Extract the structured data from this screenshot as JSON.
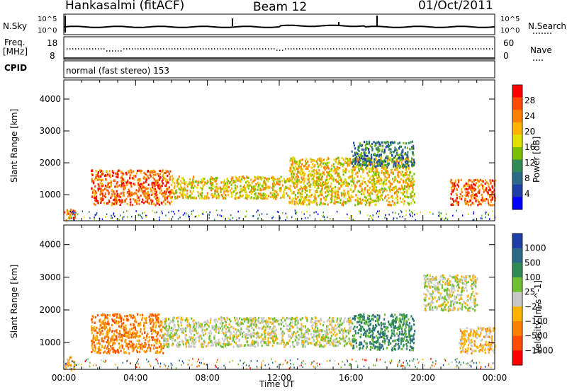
{
  "header": {
    "site": "Hankasalmi (fitACF)",
    "beam": "Beam 12",
    "date": "01/Oct/2011"
  },
  "strip_panels": {
    "nsky_label": "N.Sky",
    "nsearch_label": "N.Search",
    "nsky_ticks": [
      "10^5",
      "10^0"
    ],
    "nsearch_ticks": [
      "10^5",
      "10^0"
    ],
    "freq_label_line1": "Freq.",
    "freq_label_line2": "[MHz]",
    "freq_ticks": [
      "18",
      "8"
    ],
    "nave_label": "Nave",
    "nave_ticks": [
      "60",
      "0"
    ],
    "cpid_label": "CPID",
    "cpid_text": "normal (fast stereo) 153"
  },
  "chart_data": [
    {
      "type": "heatmap",
      "title": "",
      "xlabel": "",
      "ylabel": "Slant Range [km]",
      "ylim": [
        180,
        4600
      ],
      "xlim": [
        "00:00",
        "24:00"
      ],
      "yticks": [
        "1000",
        "2000",
        "3000",
        "4000"
      ],
      "colorbar_label": "Power [dB]",
      "colorbar_ticks": [
        "28",
        "24",
        "20",
        "16",
        "12",
        "8",
        "4"
      ],
      "colorbar_colors": [
        "#ff0000",
        "#ff4a00",
        "#ff7f00",
        "#ffb300",
        "#e0e000",
        "#7ac000",
        "#2e8b57",
        "#2d6a8a",
        "#1f3fa8",
        "#0000ff"
      ],
      "echo_regions": [
        {
          "t_start": 0.0,
          "t_end": 0.6,
          "r_min": 180,
          "r_max": 600,
          "level": "high"
        },
        {
          "t_start": 1.5,
          "t_end": 6.0,
          "r_min": 700,
          "r_max": 1800,
          "level": "high"
        },
        {
          "t_start": 6.0,
          "t_end": 12.5,
          "r_min": 900,
          "r_max": 1600,
          "level": "medium"
        },
        {
          "t_start": 12.5,
          "t_end": 19.5,
          "r_min": 700,
          "r_max": 2200,
          "level": "medium"
        },
        {
          "t_start": 16.0,
          "t_end": 19.5,
          "r_min": 1900,
          "r_max": 2700,
          "level": "low"
        },
        {
          "t_start": 21.5,
          "t_end": 24.0,
          "r_min": 700,
          "r_max": 1500,
          "level": "high"
        }
      ]
    },
    {
      "type": "heatmap",
      "title": "",
      "xlabel": "Time UT",
      "ylabel": "Slant Range [km]",
      "ylim": [
        180,
        4600
      ],
      "xlim": [
        "00:00",
        "24:00"
      ],
      "xticks": [
        "00:00",
        "04:00",
        "08:00",
        "12:00",
        "16:00",
        "20:00",
        "00:00"
      ],
      "yticks": [
        "1000",
        "2000",
        "3000",
        "4000"
      ],
      "colorbar_label": "Velocity [m s^-1]",
      "colorbar_ticks": [
        "1000",
        "500",
        "100",
        "25",
        "−25",
        "−100",
        "−500",
        "−1000"
      ],
      "colorbar_colors": [
        "#1f3fa8",
        "#2d6a8a",
        "#2e8b57",
        "#6fc030",
        "#c8c8c8",
        "#ffb300",
        "#ff7f00",
        "#ff4a00",
        "#ff0000"
      ],
      "echo_regions": [
        {
          "t_start": 0.0,
          "t_end": 0.6,
          "r_min": 180,
          "r_max": 600,
          "velocity": "-100"
        },
        {
          "t_start": 1.5,
          "t_end": 5.5,
          "r_min": 700,
          "r_max": 1900,
          "velocity": "-500"
        },
        {
          "t_start": 5.5,
          "t_end": 16.0,
          "r_min": 900,
          "r_max": 1800,
          "velocity": "0"
        },
        {
          "t_start": 16.0,
          "t_end": 19.5,
          "r_min": 800,
          "r_max": 1900,
          "velocity": "100"
        },
        {
          "t_start": 20.0,
          "t_end": 23.0,
          "r_min": 2000,
          "r_max": 3100,
          "velocity": "0"
        },
        {
          "t_start": 22.0,
          "t_end": 24.0,
          "r_min": 700,
          "r_max": 1500,
          "velocity": "-100"
        }
      ]
    }
  ]
}
